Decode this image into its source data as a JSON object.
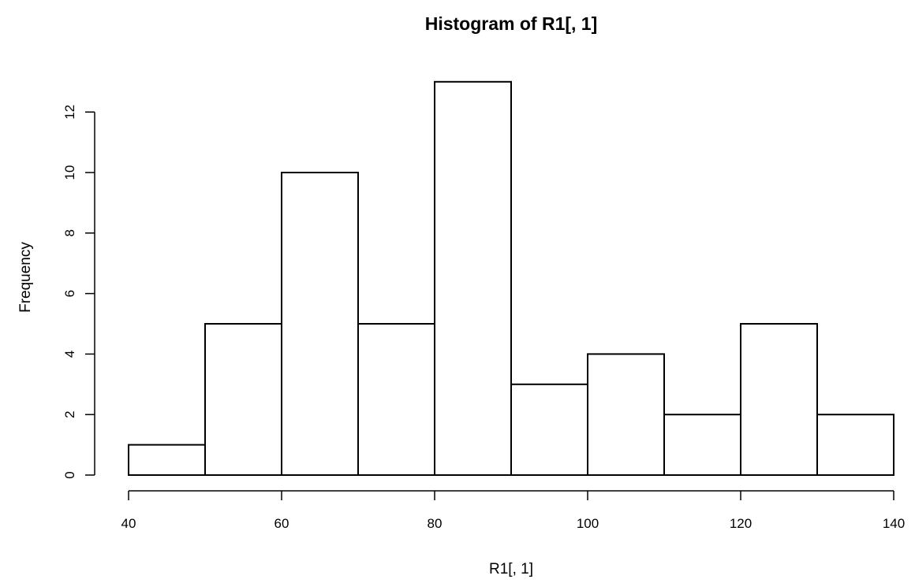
{
  "chart_data": {
    "type": "bar",
    "title": "Histogram of R1[, 1]",
    "xlabel": "R1[, 1]",
    "ylabel": "Frequency",
    "bins": [
      {
        "start": 40,
        "end": 50,
        "count": 1
      },
      {
        "start": 50,
        "end": 60,
        "count": 5
      },
      {
        "start": 60,
        "end": 70,
        "count": 10
      },
      {
        "start": 70,
        "end": 80,
        "count": 5
      },
      {
        "start": 80,
        "end": 90,
        "count": 13
      },
      {
        "start": 90,
        "end": 100,
        "count": 3
      },
      {
        "start": 100,
        "end": 110,
        "count": 4
      },
      {
        "start": 110,
        "end": 120,
        "count": 2
      },
      {
        "start": 120,
        "end": 130,
        "count": 5
      },
      {
        "start": 130,
        "end": 140,
        "count": 2
      }
    ],
    "xlim": [
      40,
      140
    ],
    "ylim": [
      0,
      13
    ],
    "x_ticks": [
      "40",
      "60",
      "80",
      "100",
      "120",
      "140"
    ],
    "y_ticks": [
      "0",
      "2",
      "4",
      "6",
      "8",
      "10",
      "12"
    ],
    "bar_fill": "#ffffff",
    "bar_stroke": "#000000",
    "grid": false,
    "legend": "none"
  }
}
